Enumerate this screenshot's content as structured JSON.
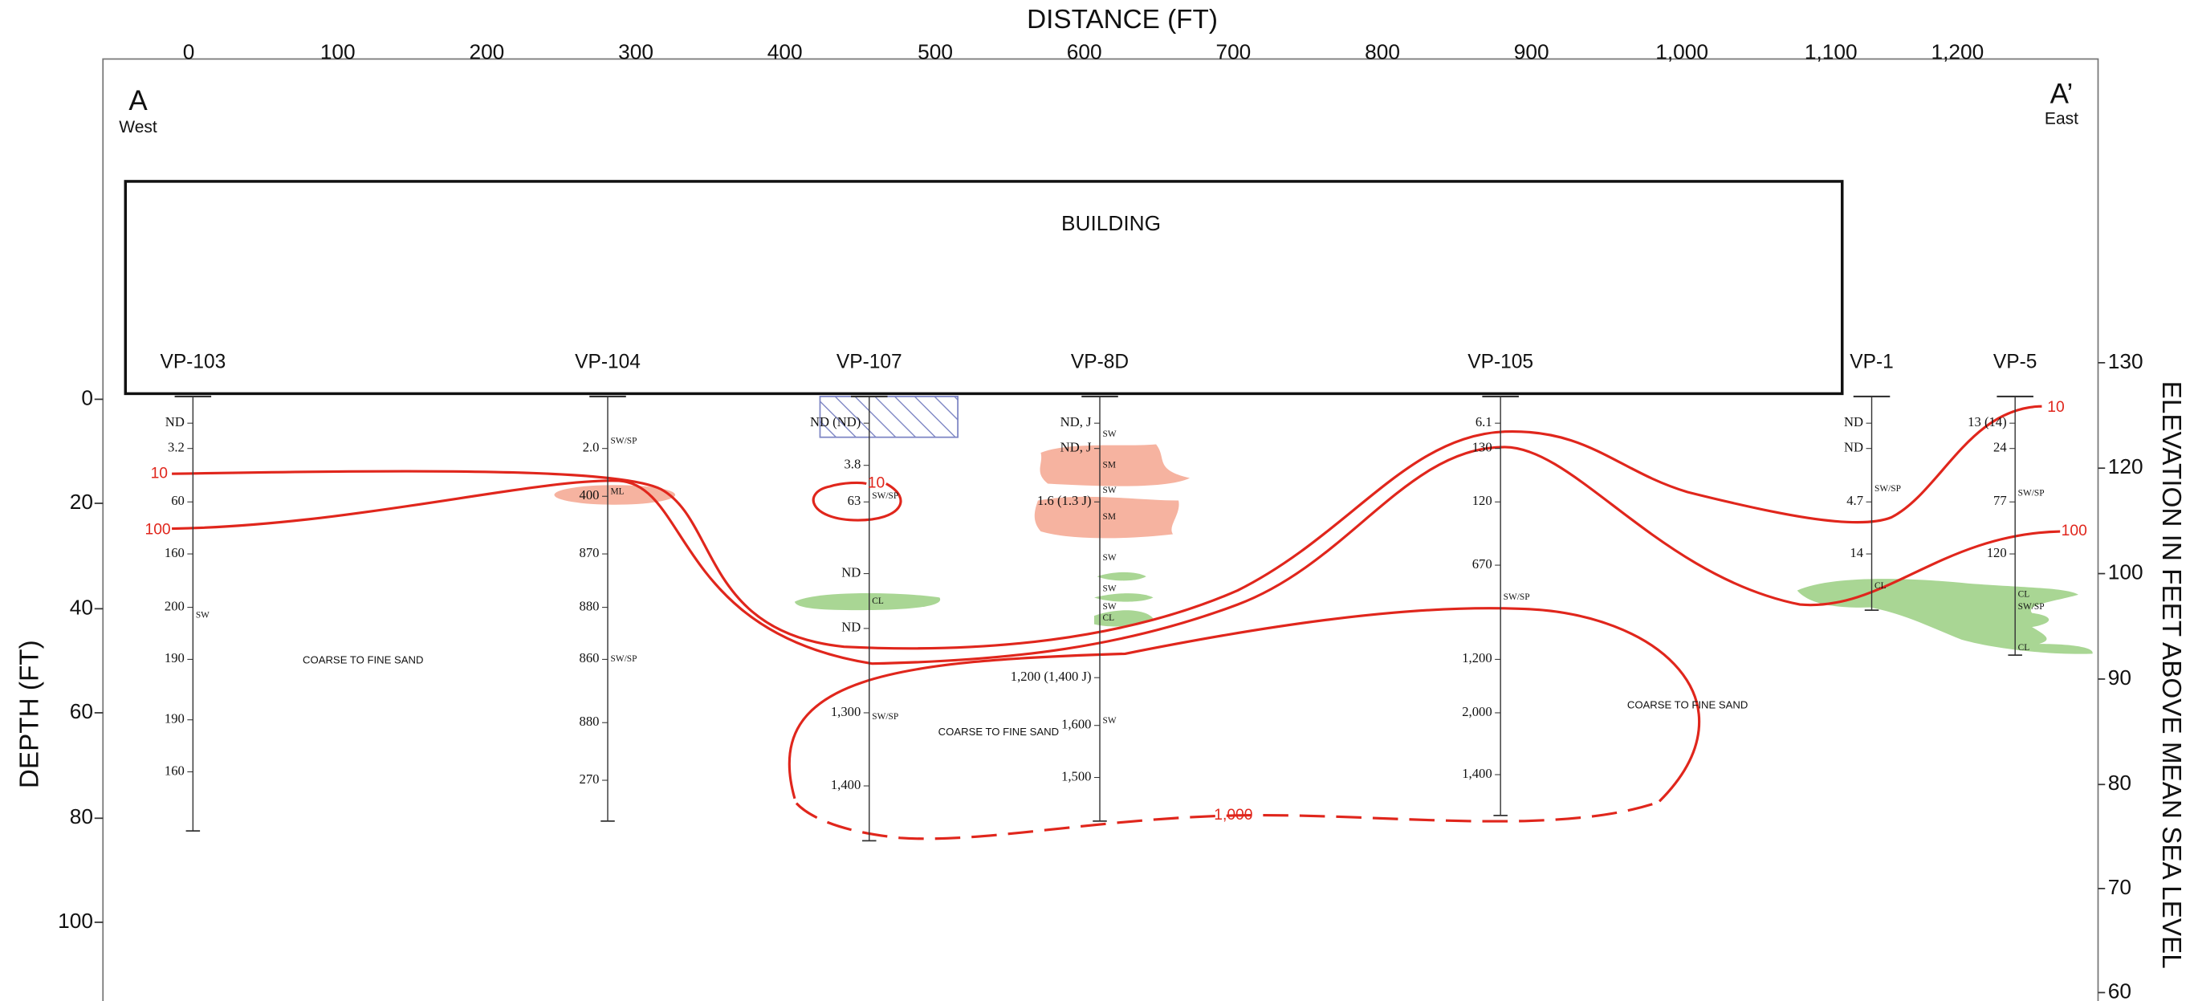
{
  "header": {
    "distance_label": "DISTANCE (FT)",
    "depth_label": "DEPTH (FT)",
    "elevation_label": "ELEVATION  IN FEET ABOVE MEAN SEA LEVEL",
    "west_marker": "A",
    "west_label": "West",
    "east_marker": "A’",
    "east_label": "East",
    "building": "BUILDING"
  },
  "distance_ticks": [
    "0",
    "100",
    "200",
    "300",
    "400",
    "500",
    "600",
    "700",
    "800",
    "900",
    "1,000",
    "1,100",
    "1,200"
  ],
  "depth_ticks": [
    "0",
    "20",
    "40",
    "60",
    "80",
    "100"
  ],
  "elevation_ticks": [
    "130",
    "120",
    "100",
    "90",
    "80",
    "70",
    "60"
  ],
  "borings": [
    {
      "name": "VP-103",
      "samples": [
        "ND",
        "3.2",
        "60",
        "160",
        "200",
        "190",
        "190",
        "160"
      ],
      "soils": [
        "SW"
      ]
    },
    {
      "name": "VP-104",
      "samples": [
        "2.0",
        "400",
        "870",
        "880",
        "860",
        "880",
        "270"
      ],
      "soils": [
        "SW/SP",
        "ML",
        "SW/SP"
      ]
    },
    {
      "name": "VP-107",
      "samples": [
        "ND (ND)",
        "3.8",
        "63",
        "ND",
        "ND",
        "1,300",
        "1,400"
      ],
      "soils": [
        "SW/SP",
        "CL",
        "SW/SP"
      ]
    },
    {
      "name": "VP-8D",
      "samples": [
        "ND, J",
        "ND, J",
        "1.6 (1.3 J)",
        "1,200 (1,400 J)",
        "1,600",
        "1,500"
      ],
      "soils": [
        "SW",
        "SM",
        "SW",
        "SM",
        "SW",
        "SW",
        "SW",
        "CL",
        "SW"
      ]
    },
    {
      "name": "VP-105",
      "samples": [
        "6.1",
        "130",
        "120",
        "670",
        "1,200",
        "2,000",
        "1,400"
      ],
      "soils": [
        "SW/SP"
      ]
    },
    {
      "name": "VP-1",
      "samples": [
        "ND",
        "ND",
        "4.7",
        "14"
      ],
      "soils": [
        "SW/SP",
        "CL"
      ]
    },
    {
      "name": "VP-5",
      "samples": [
        "13 (14)",
        "24",
        "77",
        "120"
      ],
      "soils": [
        "SW/SP",
        "CL",
        "SW/SP",
        "CL"
      ]
    }
  ],
  "contour_labels": [
    "10",
    "100",
    "10",
    "1,000",
    "10",
    "100"
  ],
  "soil_notes": [
    "COARSE TO FINE SAND",
    "COARSE TO FINE SAND",
    "COARSE TO FINE SAND"
  ]
}
